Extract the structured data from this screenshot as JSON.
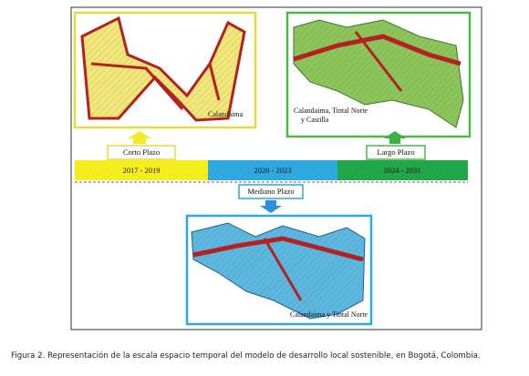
{
  "maps": {
    "short": [
      "Calandaima"
    ],
    "long": [
      "Calandaima, Tintal Norte",
      "y Castilla"
    ],
    "medium": [
      "Calandaima y Tintal Norte"
    ]
  },
  "phases": {
    "short": "Corto Plazo",
    "medium": "Mediano Plazo",
    "long": "Largo Plazo"
  },
  "timeline": [
    "2017 - 2019",
    "2020 - 2023",
    "2024 - 2031"
  ],
  "caption": "Figura 2. Representación de la escala espacio temporal del modelo de desarrollo local sostenible, en Bogotá, Colombia."
}
